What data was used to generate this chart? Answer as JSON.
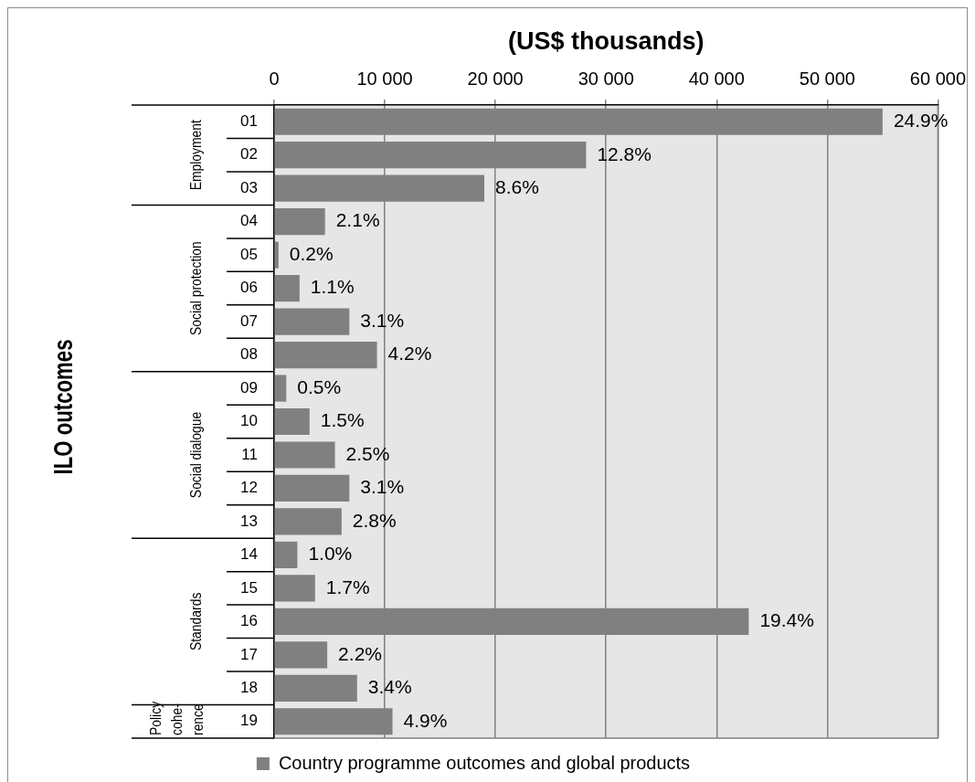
{
  "chart_data": {
    "type": "bar",
    "orientation": "horizontal",
    "xlabel": "(US$ thousands)",
    "categories": [
      "01",
      "02",
      "03",
      "04",
      "05",
      "06",
      "07",
      "08",
      "09",
      "10",
      "11",
      "12",
      "13",
      "14",
      "15",
      "16",
      "17",
      "18",
      "19"
    ],
    "series": [
      {
        "name": "Country programme outcomes and global products",
        "color": "#808080",
        "values": [
          55000,
          28200,
          19000,
          4600,
          400,
          2300,
          6800,
          9300,
          1100,
          3200,
          5500,
          6800,
          6100,
          2100,
          3700,
          42900,
          4800,
          7500,
          10700
        ]
      }
    ],
    "xlim": [
      0,
      60000
    ],
    "xticks": [
      0,
      {
        "value": 10000,
        "label": "10 000"
      },
      {
        "value": 20000,
        "label": "20 000"
      },
      {
        "value": 30000,
        "label": "30 000"
      },
      {
        "value": 40000,
        "label": "40 000"
      },
      {
        "value": 50000,
        "label": "50 000"
      },
      {
        "value": 60000,
        "label": "60 000"
      }
    ],
    "grid": "x",
    "legend": "bottom",
    "annotations": [
      "Employment",
      "Social protection",
      "Social dialogue",
      "Standards",
      "Policy\ncohe-\nrence",
      "ILO outcomes",
      {
        "text": "24.9%",
        "x": 55000,
        "y": "01"
      },
      {
        "text": "12.8%",
        "x": 28200,
        "y": "02"
      },
      {
        "text": "8.6%",
        "x": 19000,
        "y": "03"
      },
      {
        "text": "2.1%",
        "x": 4600,
        "y": "04"
      },
      {
        "text": "0.2%",
        "x": 400,
        "y": "05"
      },
      {
        "text": "1.1%",
        "x": 2300,
        "y": "06"
      },
      {
        "text": "3.1%",
        "x": 6800,
        "y": "07"
      },
      {
        "text": "4.2%",
        "x": 9300,
        "y": "08"
      },
      {
        "text": "0.5%",
        "x": 1100,
        "y": "09"
      },
      {
        "text": "1.5%",
        "x": 3200,
        "y": "10"
      },
      {
        "text": "2.5%",
        "x": 5500,
        "y": "11"
      },
      {
        "text": "3.1%",
        "x": 6800,
        "y": "12"
      },
      {
        "text": "2.8%",
        "x": 6100,
        "y": "13"
      },
      {
        "text": "1.0%",
        "x": 2100,
        "y": "14"
      },
      {
        "text": "1.7%",
        "x": 3700,
        "y": "15"
      },
      {
        "text": "19.4%",
        "x": 42900,
        "y": "16"
      },
      {
        "text": "2.2%",
        "x": 4800,
        "y": "17"
      },
      {
        "text": "3.4%",
        "x": 7500,
        "y": "18"
      },
      {
        "text": "4.9%",
        "x": 10700,
        "y": "19"
      }
    ]
  }
}
